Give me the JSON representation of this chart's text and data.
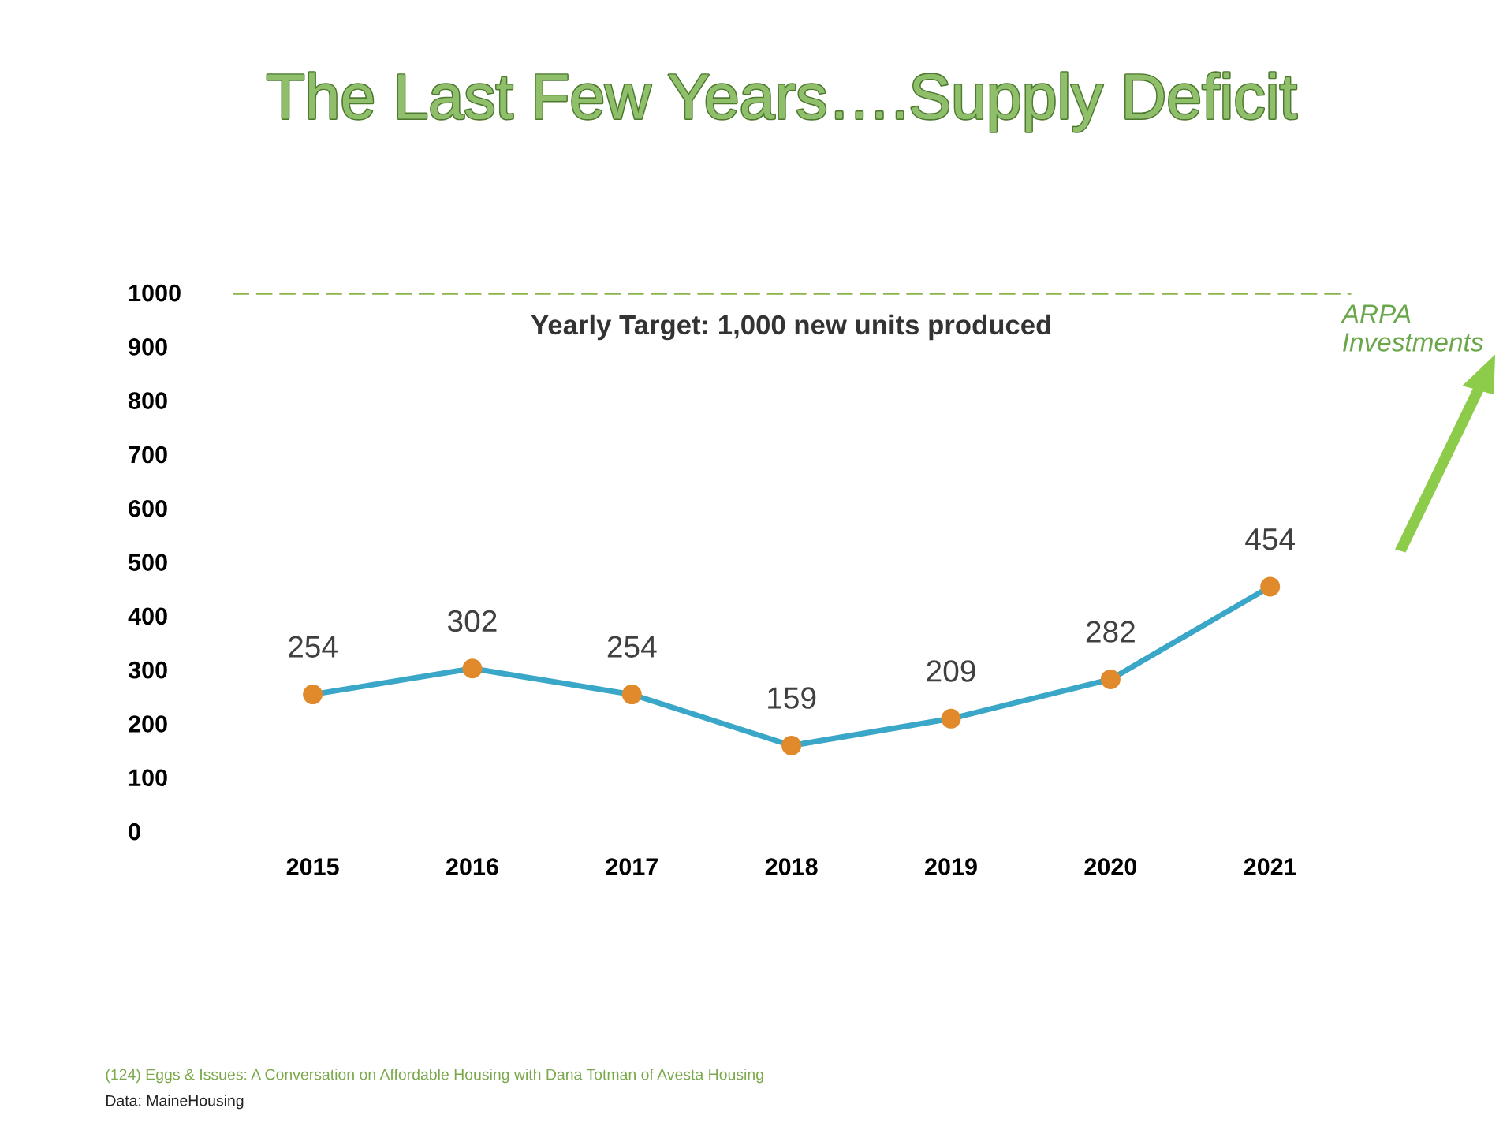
{
  "chart_data": {
    "type": "line",
    "title": "The Last Few Years….Supply Deficit",
    "categories": [
      "2015",
      "2016",
      "2017",
      "2018",
      "2019",
      "2020",
      "2021"
    ],
    "series": [
      {
        "color": "#3aa6c8",
        "colors": [
          "#e08a2c",
          "#e08a2c",
          "#e08a2c",
          "#e08a2c",
          "#e08a2c",
          "#e08a2c",
          "#e08a2c"
        ],
        "values": [
          254,
          302,
          254,
          159,
          209,
          282,
          454
        ]
      }
    ],
    "marker": "circle",
    "line_style": "solid",
    "data_labels": true,
    "ylim": [
      0,
      1000
    ],
    "yticks": [
      0,
      100,
      200,
      300,
      400,
      500,
      600,
      700,
      800,
      900,
      1000
    ],
    "grid": false,
    "legend": false,
    "ref_lines": [
      {
        "axis": "y",
        "value": 1000,
        "label": "Yearly Target: 1,000 new units produced",
        "color": "#8ab44a",
        "line_style": "dashed"
      }
    ],
    "annotations": [
      "ARPA Investments",
      "(124) Eggs & Issues: A Conversation on Affordable Housing with Dana Totman of Avesta Housing",
      "Data: MaineHousing"
    ]
  }
}
